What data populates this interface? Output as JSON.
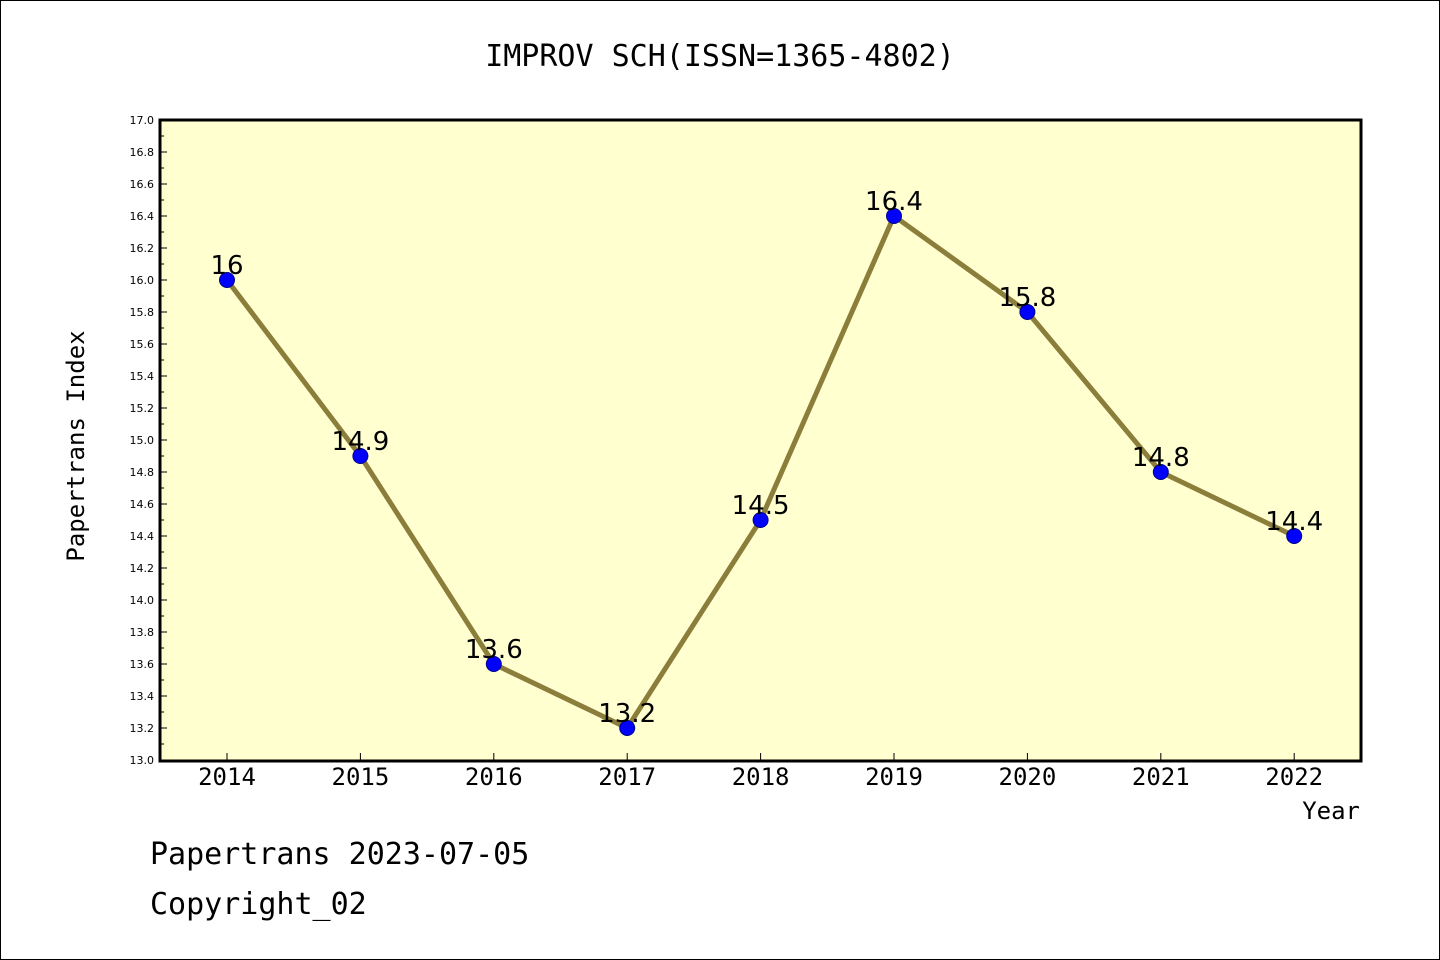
{
  "chart_data": {
    "type": "line",
    "title": "IMPROV SCH(ISSN=1365-4802)",
    "xlabel": "Year",
    "ylabel": "Papertrans Index",
    "categories": [
      "2014",
      "2015",
      "2016",
      "2017",
      "2018",
      "2019",
      "2020",
      "2021",
      "2022"
    ],
    "values": [
      16.0,
      14.9,
      13.6,
      13.2,
      14.5,
      16.4,
      15.8,
      14.8,
      14.4
    ],
    "data_labels": [
      "16",
      "14.9",
      "13.6",
      "13.2",
      "14.5",
      "16.4",
      "15.8",
      "14.8",
      "14.4"
    ],
    "ylim": [
      13.0,
      17.0
    ],
    "yticks": [
      "13.0",
      "13.2",
      "13.4",
      "13.6",
      "13.8",
      "14.0",
      "14.2",
      "14.4",
      "14.6",
      "14.8",
      "15.0",
      "15.2",
      "15.4",
      "15.6",
      "15.8",
      "16.0",
      "16.2",
      "16.4",
      "16.6",
      "16.8",
      "17.0"
    ],
    "grid": false,
    "colors": {
      "plot_background": "#ffffd0",
      "line": "#8b7d3a",
      "marker": "#0000ff"
    }
  },
  "footer": {
    "line1": "Papertrans 2023-07-05",
    "line2": "Copyright_02"
  }
}
